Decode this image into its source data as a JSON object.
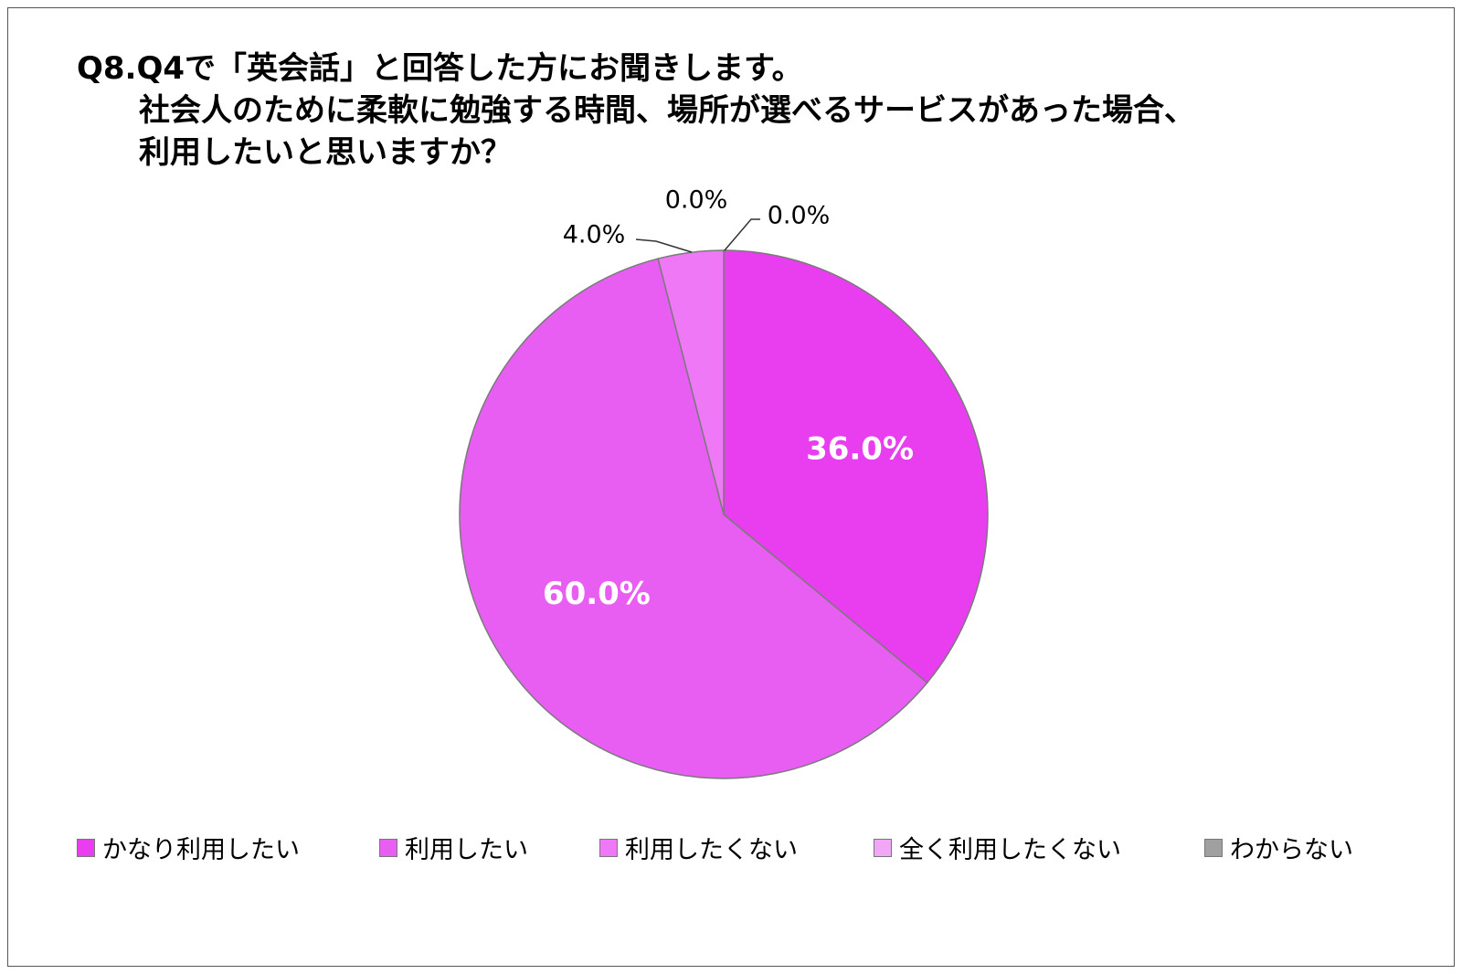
{
  "chart_data": {
    "type": "pie",
    "title_lines": [
      "Q8.Q4で「英会話」と回答した方にお聞きします。",
      "社会人のために柔軟に勉強する時間、場所が選べるサービスがあった場合、",
      "利用したいと思いますか？"
    ],
    "categories": [
      "かなり利用したい",
      "利用したい",
      "利用したくない",
      "全く利用したくない",
      "わからない"
    ],
    "values": [
      36.0,
      60.0,
      4.0,
      0.0,
      0.0
    ],
    "labels": [
      "36.0%",
      "60.0%",
      "4.0%",
      "0.0%",
      "0.0%"
    ],
    "colors": [
      "#e83ef0",
      "#e85ef3",
      "#ee78f5",
      "#f2a6f6",
      "#a0a0a0"
    ],
    "legend_position": "bottom"
  }
}
